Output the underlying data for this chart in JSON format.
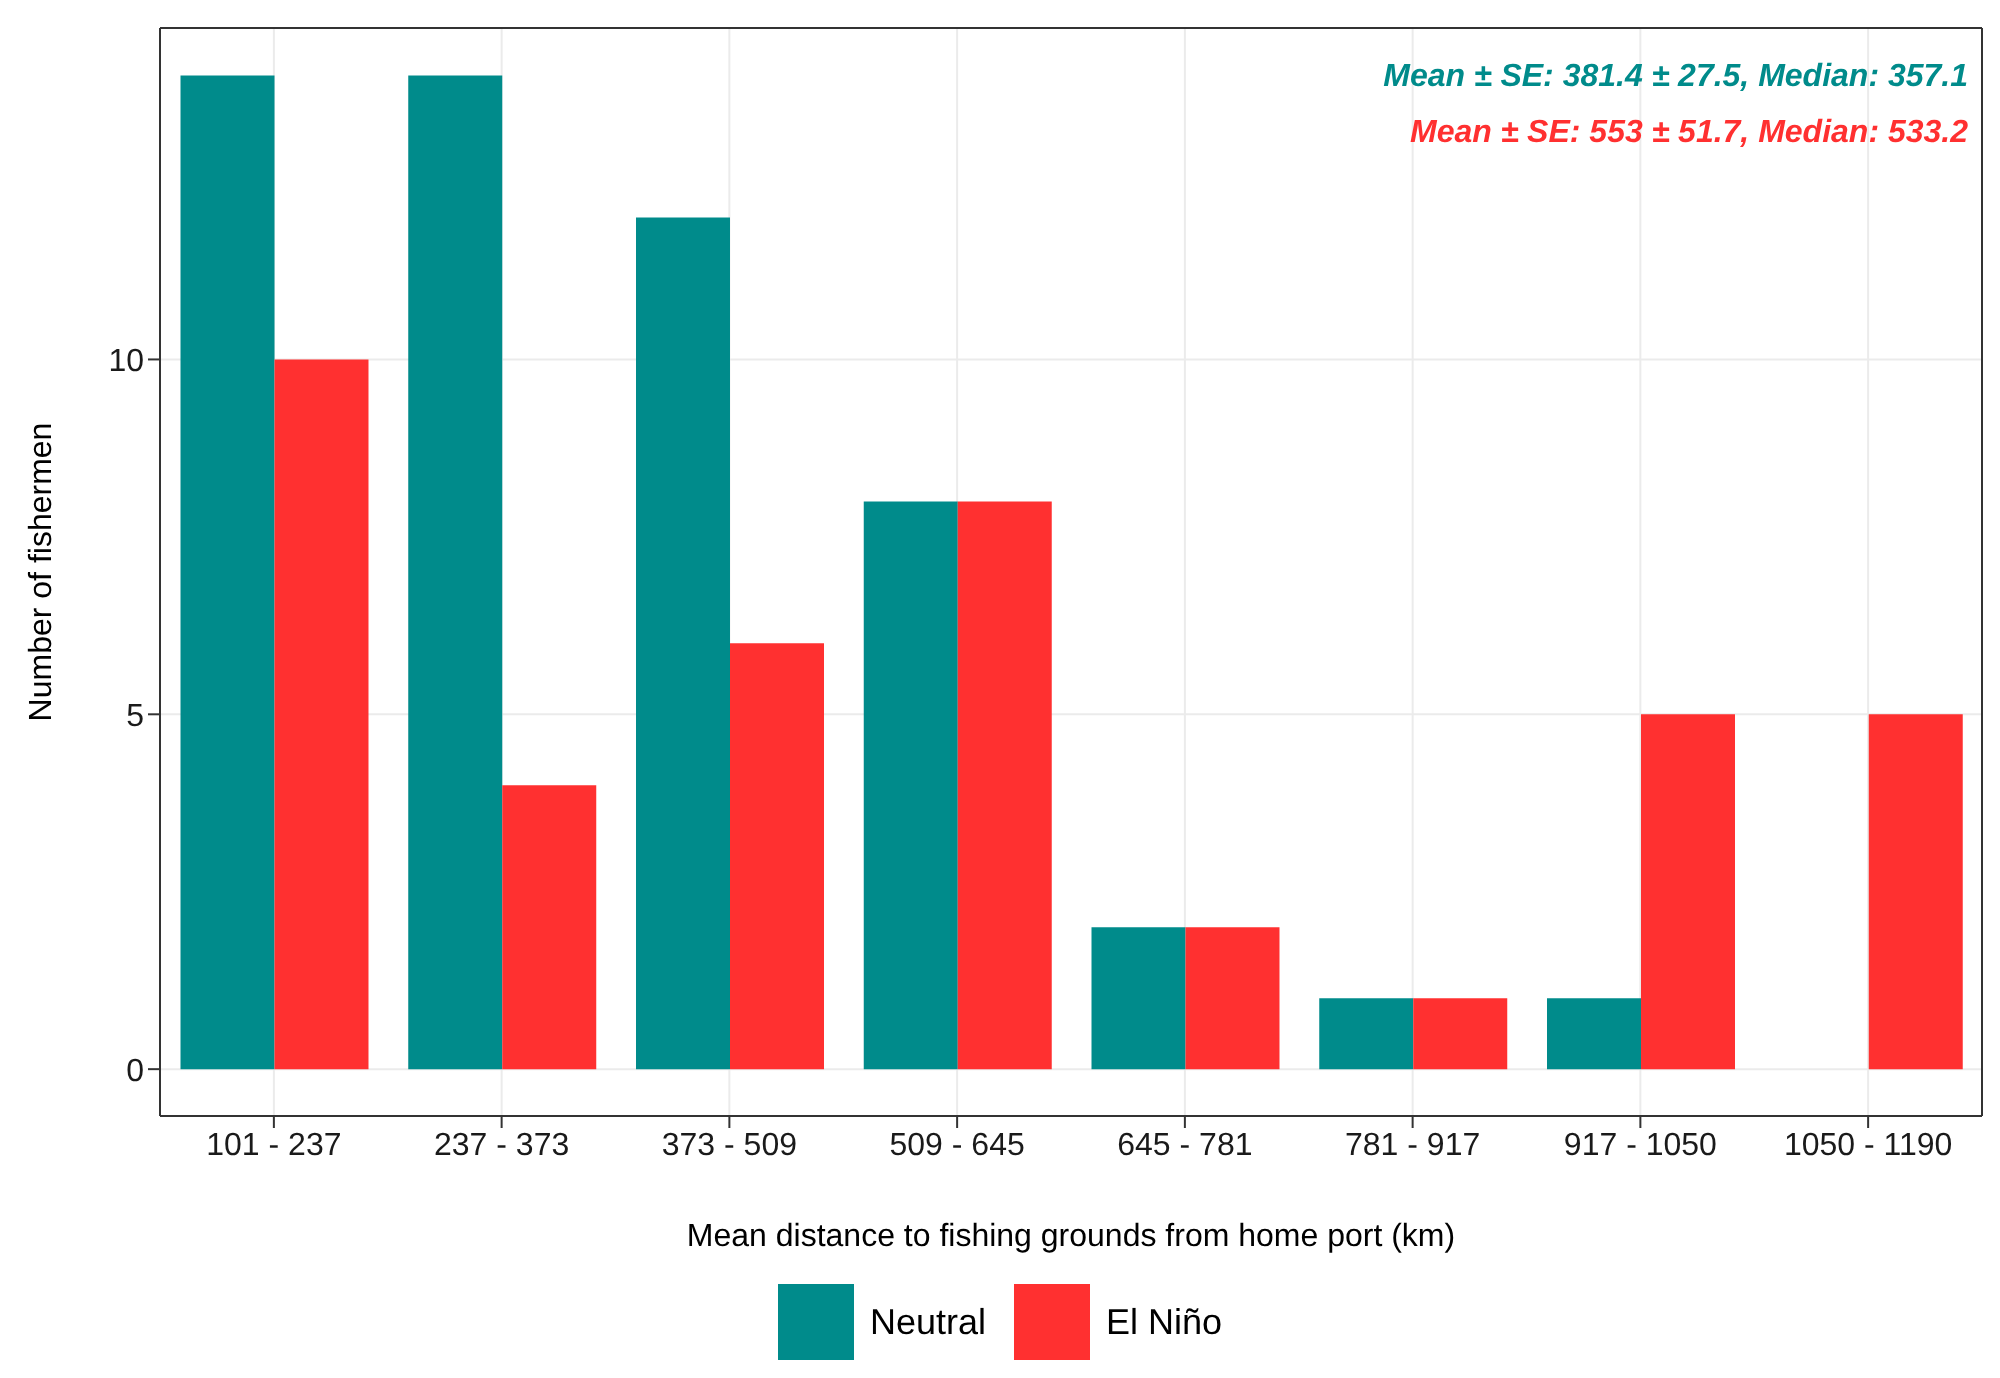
{
  "chart_data": {
    "type": "bar",
    "xlabel": "Mean distance to fishing grounds from home port (km)",
    "ylabel": "Number of fishermen",
    "categories": [
      "101 - 237",
      "237 - 373",
      "373 - 509",
      "509 - 645",
      "645 - 781",
      "781 - 917",
      "917 - 1050",
      "1050 - 1190"
    ],
    "series": [
      {
        "name": "Neutral",
        "color": "#008b8b",
        "values": [
          14,
          14,
          12,
          8,
          2,
          1,
          1,
          0
        ]
      },
      {
        "name": "El Niño",
        "color": "#ff3030",
        "values": [
          10,
          4,
          6,
          8,
          2,
          1,
          5,
          5
        ]
      }
    ],
    "ylim": [
      -0.66,
      14.67
    ],
    "yticks": [
      0,
      5,
      10
    ],
    "grid": true,
    "legend": "bottom",
    "annotations": [
      "Mean ± SE: 381.4 ± 27.5, Median: 357.1",
      "Mean ± SE: 553 ± 51.7, Median: 533.2"
    ]
  }
}
